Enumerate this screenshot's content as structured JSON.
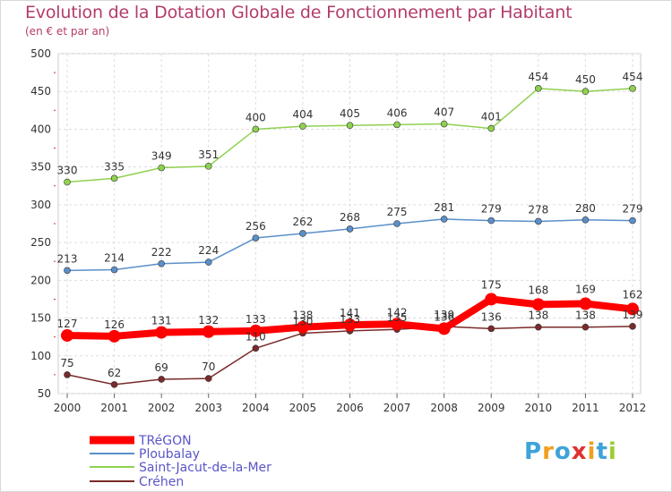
{
  "title": "Evolution de la Dotation Globale de Fonctionnement par Habitant",
  "subtitle": "(en € et par an)",
  "logo": {
    "text": "Proxiti",
    "letters": [
      "P",
      "r",
      "o",
      "x",
      "i",
      "t",
      "i"
    ],
    "colors": [
      "#3ea3d8",
      "#f0a020",
      "#3ea3d8",
      "#e03030",
      "#f0a020",
      "#3ea3d8",
      "#9acd32"
    ]
  },
  "chart_data": {
    "type": "line",
    "x": [
      "2000",
      "2001",
      "2002",
      "2003",
      "2004",
      "2005",
      "2006",
      "2007",
      "2008",
      "2009",
      "2010",
      "2011",
      "2012"
    ],
    "ylim": [
      50,
      500
    ],
    "yticks": [
      50,
      100,
      150,
      200,
      250,
      300,
      350,
      400,
      450,
      500
    ],
    "grid": true,
    "legend_position": "bottom-left",
    "series": [
      {
        "name": "TRéGON",
        "color": "#ff0000",
        "values": [
          127,
          126,
          131,
          132,
          133,
          138,
          141,
          142,
          136,
          175,
          168,
          169,
          162
        ]
      },
      {
        "name": "Ploubalay",
        "color": "#5b8fc9",
        "values": [
          213,
          214,
          222,
          224,
          256,
          262,
          268,
          275,
          281,
          279,
          278,
          280,
          279
        ]
      },
      {
        "name": "Saint-Jacut-de-la-Mer",
        "color": "#8fd14f",
        "values": [
          330,
          335,
          349,
          351,
          400,
          404,
          405,
          406,
          407,
          401,
          454,
          450,
          454
        ]
      },
      {
        "name": "Créhen",
        "color": "#7a2a2a",
        "values": [
          75,
          62,
          69,
          70,
          110,
          130,
          133,
          135,
          139,
          136,
          138,
          138,
          139
        ]
      }
    ]
  }
}
